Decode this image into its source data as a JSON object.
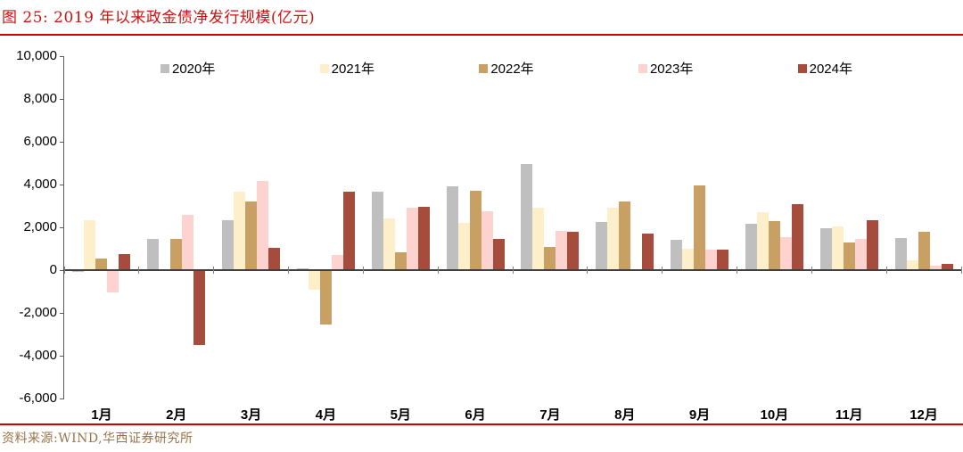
{
  "title": "图 25: 2019 年以来政金债净发行规模(亿元)",
  "source": "资料来源:WIND,华西证券研究所",
  "colors": {
    "title_red": "#CE1212",
    "divider_red": "#D40000",
    "axis": "#595959",
    "zero_line": "#3f3f3f",
    "source_text": "#9A7448"
  },
  "chart_data": {
    "type": "bar",
    "title": "图 25: 2019 年以来政金债净发行规模(亿元)",
    "xlabel": "",
    "ylabel": "",
    "ylim": [
      -6000,
      10000
    ],
    "yticks": [
      10000,
      8000,
      6000,
      4000,
      2000,
      0,
      -2000,
      -4000,
      -6000
    ],
    "ytick_labels": [
      "10,000",
      "8,000",
      "6,000",
      "4,000",
      "2,000",
      "0",
      "-2,000",
      "-4,000",
      "-6,000"
    ],
    "grid": false,
    "legend_position": "top",
    "categories": [
      "1月",
      "2月",
      "3月",
      "4月",
      "5月",
      "6月",
      "7月",
      "8月",
      "9月",
      "10月",
      "11月",
      "12月"
    ],
    "series": [
      {
        "name": "2020年",
        "color": "#BFBFBF",
        "values": [
          -80,
          1450,
          2350,
          80,
          3650,
          3900,
          4950,
          2250,
          1400,
          2150,
          1950,
          1500
        ]
      },
      {
        "name": "2021年",
        "color": "#FCEFC9",
        "values": [
          2350,
          -60,
          3650,
          -900,
          2400,
          2200,
          2900,
          2900,
          1000,
          2700,
          2050,
          450
        ]
      },
      {
        "name": "2022年",
        "color": "#C9A063",
        "values": [
          550,
          1450,
          3200,
          -2550,
          850,
          3700,
          1100,
          3200,
          3950,
          2300,
          1300,
          1800
        ]
      },
      {
        "name": "2023年",
        "color": "#FDD3D0",
        "values": [
          -1050,
          2600,
          4150,
          700,
          2900,
          2750,
          1850,
          -60,
          950,
          1550,
          1450,
          200
        ]
      },
      {
        "name": "2024年",
        "color": "#A64C3D",
        "values": [
          750,
          -3500,
          1050,
          3650,
          2950,
          1450,
          1800,
          1700,
          950,
          3100,
          2350,
          300
        ]
      }
    ]
  }
}
